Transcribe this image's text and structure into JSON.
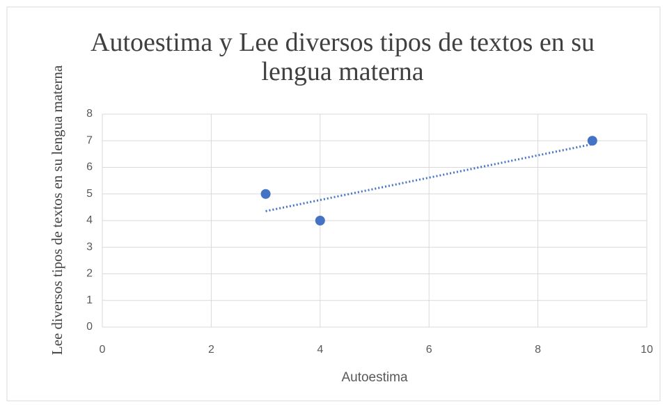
{
  "chart_data": {
    "type": "scatter",
    "title": "Autoestima y Lee diversos tipos de textos en su lengua materna",
    "x_label": "Autoestima",
    "y_label": "Lee diversos tipos de textos en su lengua materna",
    "series": [
      {
        "name": "Lee diversos tipos de textos en su lengua materna",
        "color": "#4472c4",
        "x": [
          3,
          4,
          9
        ],
        "values": [
          5,
          4,
          7
        ]
      }
    ],
    "trendline": "linear",
    "xlim": [
      0,
      10
    ],
    "xticks": [
      0,
      2,
      4,
      6,
      8,
      10
    ],
    "ylim": [
      0,
      8
    ],
    "yticks": [
      0,
      1,
      2,
      3,
      4,
      5,
      6,
      7,
      8
    ],
    "grid": true
  }
}
